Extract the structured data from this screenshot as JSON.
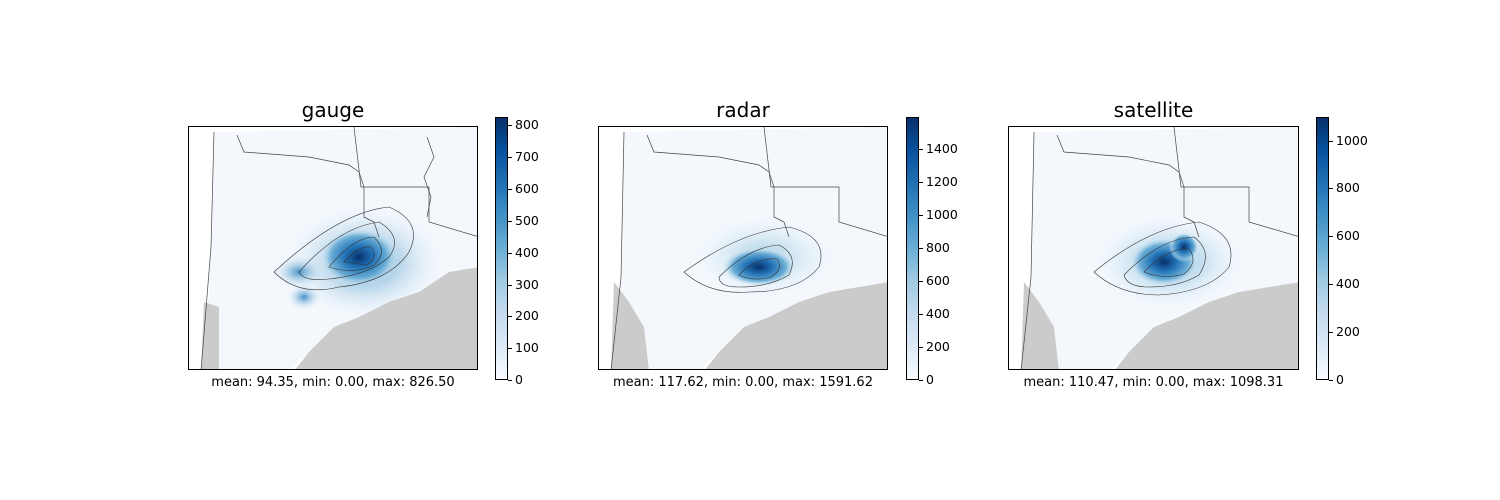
{
  "chart_data": [
    {
      "type": "heatmap",
      "title": "gauge",
      "caption": "mean: 94.35, min: 0.00, max: 826.50",
      "colormap": "Blues",
      "colorbar": {
        "range": [
          0,
          826.5
        ],
        "ticks": [
          0,
          100,
          200,
          300,
          400,
          500,
          600,
          700,
          800
        ]
      },
      "stats": {
        "mean": 94.35,
        "min": 0.0,
        "max": 826.5
      },
      "masked_color": "#cbcbcb"
    },
    {
      "type": "heatmap",
      "title": "radar",
      "caption": "mean: 117.62, min: 0.00, max: 1591.62",
      "colormap": "Blues",
      "colorbar": {
        "range": [
          0,
          1591.62
        ],
        "ticks": [
          0,
          200,
          400,
          600,
          800,
          1000,
          1200,
          1400
        ]
      },
      "stats": {
        "mean": 117.62,
        "min": 0.0,
        "max": 1591.62
      },
      "masked_color": "#cbcbcb"
    },
    {
      "type": "heatmap",
      "title": "satellite",
      "caption": "mean: 110.47, min: 0.00, max: 1098.31",
      "colormap": "Blues",
      "colorbar": {
        "range": [
          0,
          1098.31
        ],
        "ticks": [
          0,
          200,
          400,
          600,
          800,
          1000
        ]
      },
      "stats": {
        "mean": 110.47,
        "min": 0.0,
        "max": 1098.31
      },
      "masked_color": "#cbcbcb"
    }
  ]
}
